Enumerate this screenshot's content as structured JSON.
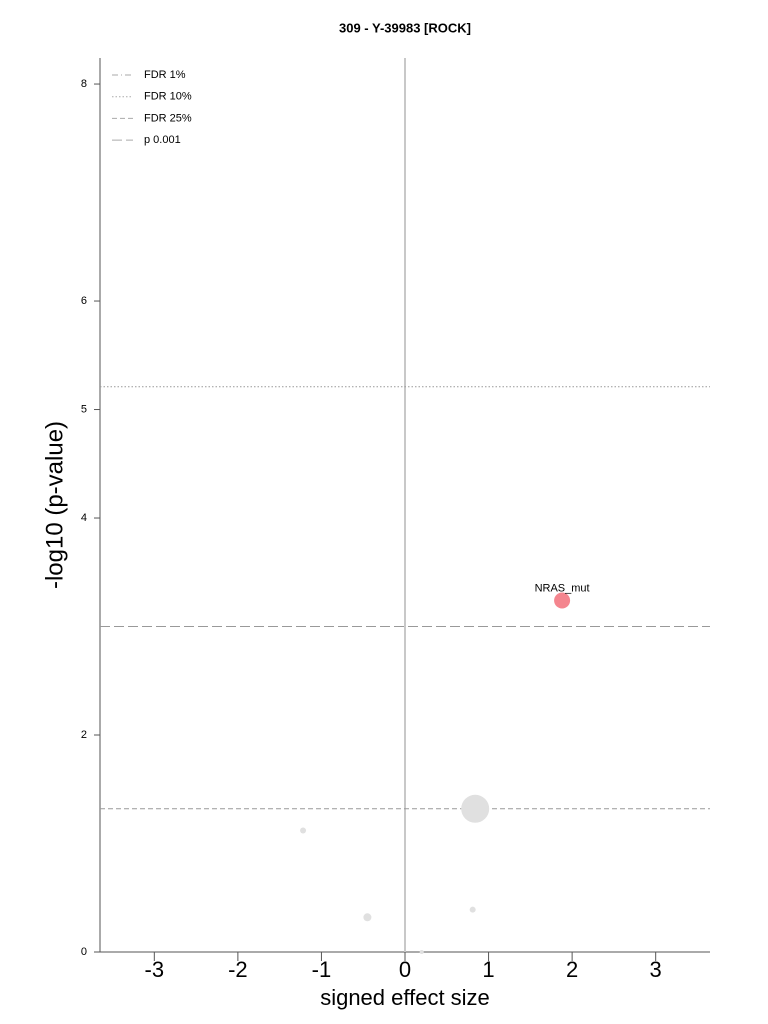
{
  "chart_data": {
    "type": "scatter",
    "title": "309 - Y-39983 [ROCK]",
    "x_label": "signed effect size",
    "y_label": "-log10 (p-value)",
    "xlim": [
      -3.65,
      3.65
    ],
    "xticks": [
      -3,
      -2,
      -1,
      0,
      1,
      2,
      3
    ],
    "ylim": [
      0,
      8.24
    ],
    "yticks": [
      0,
      2,
      4,
      5,
      6,
      8
    ],
    "series": [
      {
        "x": [
          1.88,
          0.84,
          -1.22,
          -0.45,
          0.81,
          0.2
        ],
        "values": [
          3.24,
          1.32,
          1.12,
          0.32,
          0.39,
          0.0
        ],
        "sizes": [
          8,
          14,
          3,
          4,
          3,
          2
        ],
        "colors": [
          "#f4858e",
          "#e0e0e0",
          "#e0e0e0",
          "#e0e0e0",
          "#e0e0e0",
          "#e0e0e0"
        ],
        "labels": [
          "NRAS_mut",
          null,
          null,
          null,
          null,
          null
        ]
      }
    ],
    "thresholds": [
      {
        "name": "FDR 1%",
        "style": "dashdot"
      },
      {
        "name": "FDR 10%",
        "style": "dotted",
        "value": 5.21
      },
      {
        "name": "FDR 25%",
        "style": "dashed",
        "value": 1.32
      },
      {
        "name": "p 0.001",
        "style": "longdash",
        "value": 3.0
      }
    ],
    "legend": "upper-left"
  }
}
